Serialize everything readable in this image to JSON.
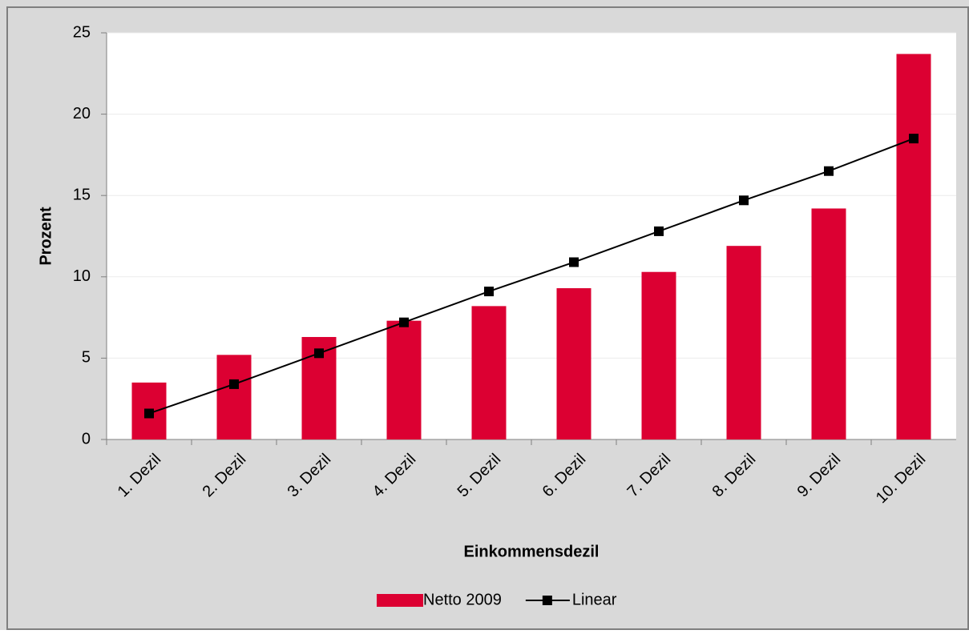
{
  "chart_data": {
    "type": "bar",
    "xlabel": "Einkommensdezil",
    "ylabel": "Prozent",
    "categories": [
      "1. Dezil",
      "2. Dezil",
      "3. Dezil",
      "4. Dezil",
      "5. Dezil",
      "6. Dezil",
      "7. Dezil",
      "8. Dezil",
      "9. Dezil",
      "10. Dezil"
    ],
    "series": [
      {
        "name": "Netto 2009",
        "type": "bar",
        "color": "#dc0032",
        "values": [
          3.5,
          5.2,
          6.3,
          7.3,
          8.2,
          9.3,
          10.3,
          11.9,
          14.2,
          23.7
        ]
      },
      {
        "name": "Linear",
        "type": "line",
        "color": "#000000",
        "values": [
          1.6,
          3.4,
          5.3,
          7.2,
          9.1,
          10.9,
          12.8,
          14.7,
          16.5,
          18.5
        ]
      }
    ],
    "ylim": [
      0,
      25
    ],
    "yticks": [
      0,
      5,
      10,
      15,
      20,
      25
    ],
    "grid": true,
    "legend": "bottom"
  }
}
